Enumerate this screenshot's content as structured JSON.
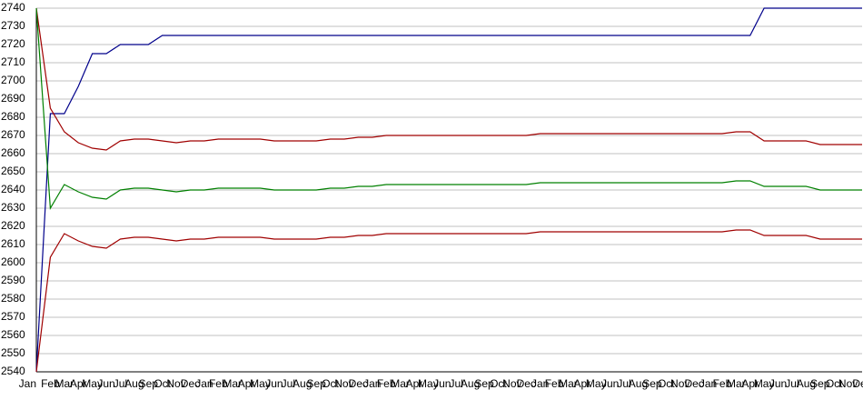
{
  "chart_data": {
    "type": "line",
    "categories": [
      "Jan",
      "Feb",
      "Mar",
      "Apr",
      "May",
      "Jun",
      "Jul",
      "Aug",
      "Sep",
      "Oct",
      "Nov",
      "Dec",
      "Jan",
      "Feb",
      "Mar",
      "Apr",
      "May",
      "Jun",
      "Jul",
      "Aug",
      "Sep",
      "Oct",
      "Nov",
      "Dec",
      "Jan",
      "Feb",
      "Mar",
      "Apr",
      "May",
      "Jun",
      "Jul",
      "Aug",
      "Sep",
      "Oct",
      "Nov",
      "Dec",
      "Jan",
      "Feb",
      "Mar",
      "Apr",
      "May",
      "Jun",
      "Jul",
      "Aug",
      "Sep",
      "Oct",
      "Nov",
      "Dec",
      "Jan",
      "Feb",
      "Mar",
      "Apr",
      "May",
      "Jun",
      "Jul",
      "Aug",
      "Sep",
      "Oct",
      "Nov",
      "Dec"
    ],
    "series": [
      {
        "color": "#00008b",
        "values": [
          2540,
          2682,
          2682,
          2697,
          2715,
          2715,
          2720,
          2720,
          2720,
          2725,
          2725,
          2725,
          2725,
          2725,
          2725,
          2725,
          2725,
          2725,
          2725,
          2725,
          2725,
          2725,
          2725,
          2725,
          2725,
          2725,
          2725,
          2725,
          2725,
          2725,
          2725,
          2725,
          2725,
          2725,
          2725,
          2725,
          2725,
          2725,
          2725,
          2725,
          2725,
          2725,
          2725,
          2725,
          2725,
          2725,
          2725,
          2725,
          2725,
          2725,
          2725,
          2725,
          2740,
          2740,
          2740,
          2740,
          2740,
          2740,
          2740,
          2740
        ]
      },
      {
        "color": "#a00000",
        "values": [
          2740,
          2685,
          2672,
          2666,
          2663,
          2662,
          2667,
          2668,
          2668,
          2667,
          2666,
          2667,
          2667,
          2668,
          2668,
          2668,
          2668,
          2667,
          2667,
          2667,
          2667,
          2668,
          2668,
          2669,
          2669,
          2670,
          2670,
          2670,
          2670,
          2670,
          2670,
          2670,
          2670,
          2670,
          2670,
          2670,
          2671,
          2671,
          2671,
          2671,
          2671,
          2671,
          2671,
          2671,
          2671,
          2671,
          2671,
          2671,
          2671,
          2671,
          2672,
          2672,
          2667,
          2667,
          2667,
          2667,
          2665,
          2665,
          2665,
          2665
        ]
      },
      {
        "color": "#008000",
        "values": [
          2740,
          2630,
          2643,
          2639,
          2636,
          2635,
          2640,
          2641,
          2641,
          2640,
          2639,
          2640,
          2640,
          2641,
          2641,
          2641,
          2641,
          2640,
          2640,
          2640,
          2640,
          2641,
          2641,
          2642,
          2642,
          2643,
          2643,
          2643,
          2643,
          2643,
          2643,
          2643,
          2643,
          2643,
          2643,
          2643,
          2644,
          2644,
          2644,
          2644,
          2644,
          2644,
          2644,
          2644,
          2644,
          2644,
          2644,
          2644,
          2644,
          2644,
          2645,
          2645,
          2642,
          2642,
          2642,
          2642,
          2640,
          2640,
          2640,
          2640
        ]
      },
      {
        "color": "#a00000",
        "values": [
          2540,
          2603,
          2616,
          2612,
          2609,
          2608,
          2613,
          2614,
          2614,
          2613,
          2612,
          2613,
          2613,
          2614,
          2614,
          2614,
          2614,
          2613,
          2613,
          2613,
          2613,
          2614,
          2614,
          2615,
          2615,
          2616,
          2616,
          2616,
          2616,
          2616,
          2616,
          2616,
          2616,
          2616,
          2616,
          2616,
          2617,
          2617,
          2617,
          2617,
          2617,
          2617,
          2617,
          2617,
          2617,
          2617,
          2617,
          2617,
          2617,
          2617,
          2618,
          2618,
          2615,
          2615,
          2615,
          2615,
          2613,
          2613,
          2613,
          2613
        ]
      }
    ],
    "ylim": [
      2540,
      2740
    ],
    "yticks": [
      2540,
      2550,
      2560,
      2570,
      2580,
      2590,
      2600,
      2610,
      2620,
      2630,
      2640,
      2650,
      2660,
      2670,
      2680,
      2690,
      2700,
      2710,
      2720,
      2730,
      2740
    ],
    "grid": true
  }
}
